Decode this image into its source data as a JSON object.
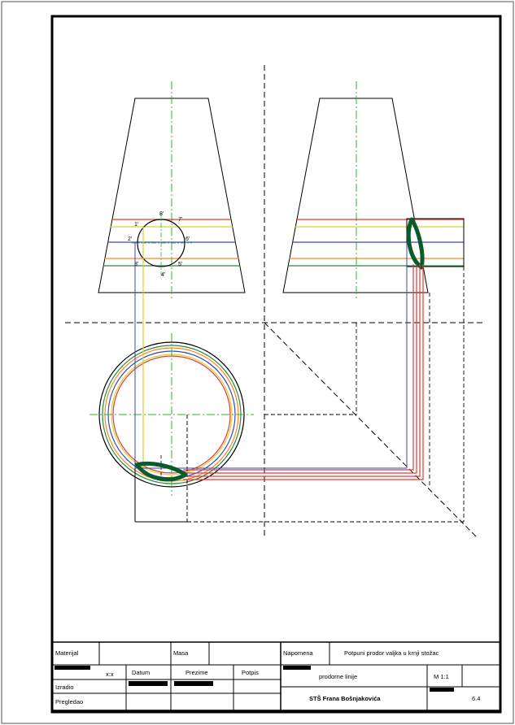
{
  "drawing": {
    "point_labels": {
      "p1": "1'",
      "p2": "2'",
      "p3": "3'",
      "p4": "4'",
      "p5": "5'",
      "p6": "6'",
      "p7": "7'",
      "p8": "8'"
    }
  },
  "title_block": {
    "material_label": "Materijal",
    "mass_label": "Masa",
    "note_label": "Napomena",
    "note_value": "Potpuni prodor valjka u krnji stožac",
    "scale_symbol": "x:x",
    "date_label": "Datum",
    "surname_label": "Prezime",
    "signature_label": "Potpis",
    "subtitle": "prodorne linije",
    "scale": "M 1:1",
    "made_by_label": "Izradio",
    "checked_by_label": "Pregledao",
    "school": "STŠ Frana Bošnjakovića",
    "sheet_number": "6.4"
  },
  "colors": {
    "red": "#e53935",
    "yellow": "#d4d43a",
    "blue": "#3949ab",
    "orange": "#f08a24",
    "green": "#2e8b3e",
    "dark_green": "#0b5a2c",
    "centerline": "#28b828"
  }
}
